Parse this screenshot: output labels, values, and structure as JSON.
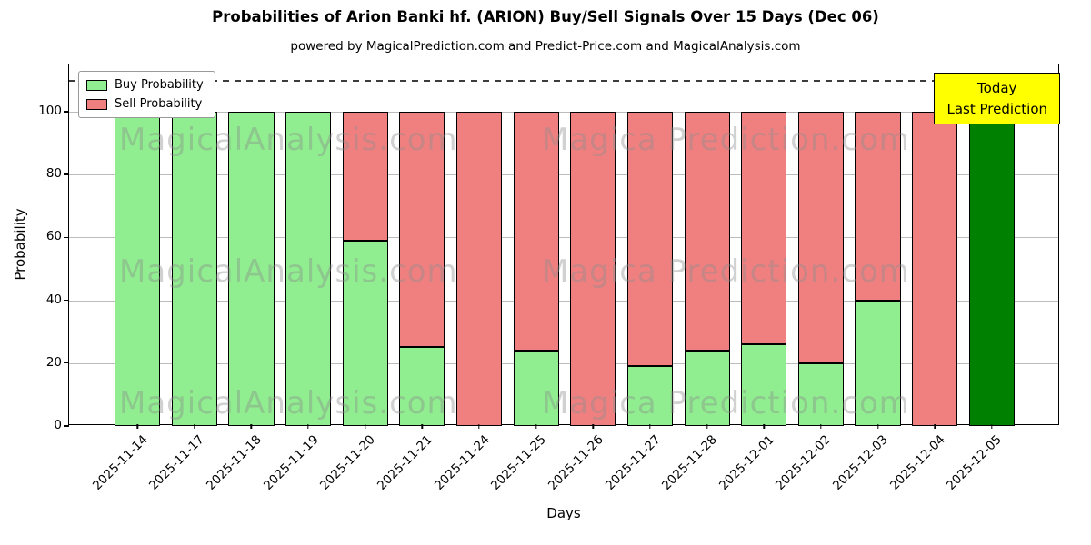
{
  "chart_data": {
    "type": "bar",
    "stacked": true,
    "title": "Probabilities of Arion Banki hf. (ARION) Buy/Sell Signals Over 15 Days (Dec 06)",
    "subtitle": "powered by MagicalPrediction.com and Predict-Price.com and MagicalAnalysis.com",
    "xlabel": "Days",
    "ylabel": "Probability",
    "ylim": [
      0,
      115
    ],
    "yticks": [
      0,
      20,
      40,
      60,
      80,
      100
    ],
    "dashed_line_y": 110,
    "grid": true,
    "legend_position": "top-left",
    "categories": [
      "2025-11-14",
      "2025-11-17",
      "2025-11-18",
      "2025-11-19",
      "2025-11-20",
      "2025-11-21",
      "2025-11-24",
      "2025-11-25",
      "2025-11-26",
      "2025-11-27",
      "2025-11-28",
      "2025-12-01",
      "2025-12-02",
      "2025-12-03",
      "2025-12-04",
      "2025-12-05"
    ],
    "series": [
      {
        "name": "Buy Probability",
        "color": "#90EE90",
        "values": [
          100,
          100,
          100,
          100,
          59,
          25,
          0,
          24,
          0,
          19,
          24,
          26,
          20,
          40,
          0,
          100
        ]
      },
      {
        "name": "Sell Probability",
        "color": "#F08080",
        "values": [
          0,
          0,
          0,
          0,
          41,
          75,
          100,
          76,
          100,
          81,
          76,
          74,
          80,
          60,
          100,
          0
        ]
      }
    ],
    "today_bar": {
      "category": "2025-12-05",
      "color": "#008000",
      "value": 100
    },
    "annotation_box": {
      "lines": [
        "Today",
        "Last Prediction"
      ],
      "bg": "#FFFF00"
    },
    "watermarks": [
      {
        "text": "MagicalAnalysis.com"
      },
      {
        "text": "Magica Prediction.com"
      }
    ]
  }
}
